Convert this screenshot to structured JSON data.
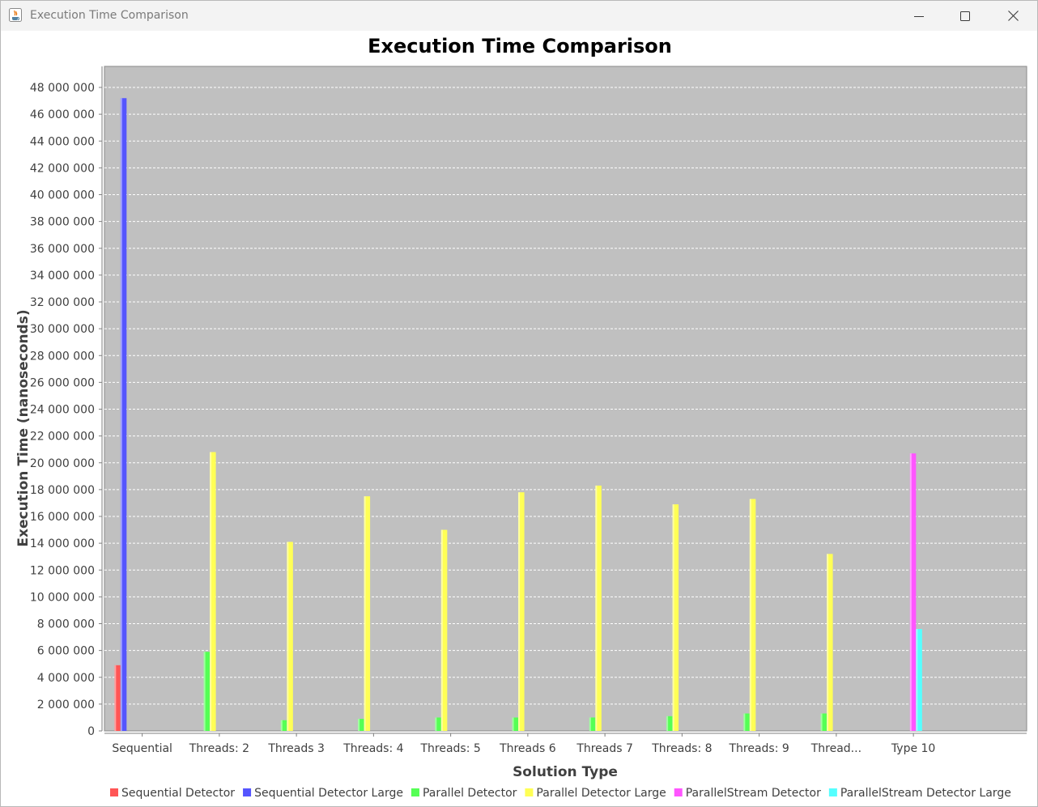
{
  "window": {
    "title": "Execution Time Comparison",
    "buttons": {
      "minimize": "minimize-icon",
      "maximize": "maximize-icon",
      "close": "close-icon"
    }
  },
  "colors": {
    "plot_background": "#c0c0c0",
    "gridline": "#ffffff",
    "series": [
      "#ff5555",
      "#5555ff",
      "#55ff55",
      "#ffff55",
      "#ff55ff",
      "#55ffff"
    ]
  },
  "chart_data": {
    "type": "bar",
    "title": "Execution Time Comparison",
    "xlabel": "Solution Type",
    "ylabel": "Execution Time (nanoseconds)",
    "ylim": [
      0,
      49000000
    ],
    "yticks": [
      0,
      2000000,
      4000000,
      6000000,
      8000000,
      10000000,
      12000000,
      14000000,
      16000000,
      18000000,
      20000000,
      22000000,
      24000000,
      26000000,
      28000000,
      30000000,
      32000000,
      34000000,
      36000000,
      38000000,
      40000000,
      42000000,
      44000000,
      46000000,
      48000000
    ],
    "ytick_labels": [
      "0",
      "2 000 000",
      "4 000 000",
      "6 000 000",
      "8 000 000",
      "10 000 000",
      "12 000 000",
      "14 000 000",
      "16 000 000",
      "18 000 000",
      "20 000 000",
      "22 000 000",
      "24 000 000",
      "26 000 000",
      "28 000 000",
      "30 000 000",
      "32 000 000",
      "34 000 000",
      "36 000 000",
      "38 000 000",
      "40 000 000",
      "42 000 000",
      "44 000 000",
      "46 000 000",
      "48 000 000"
    ],
    "categories": [
      "Sequential",
      "Threads: 2",
      "Threads 3",
      "Threads: 4",
      "Threads: 5",
      "Threads 6",
      "Threads 7",
      "Threads: 8",
      "Threads: 9",
      "Thread...",
      "Type 10"
    ],
    "grid": true,
    "legend": "bottom",
    "series": [
      {
        "name": "Sequential Detector",
        "values": [
          4900000,
          null,
          null,
          null,
          null,
          null,
          null,
          null,
          null,
          null,
          null
        ]
      },
      {
        "name": "Sequential Detector Large",
        "values": [
          47200000,
          null,
          null,
          null,
          null,
          null,
          null,
          null,
          null,
          null,
          null
        ]
      },
      {
        "name": "Parallel Detector",
        "values": [
          null,
          5900000,
          800000,
          900000,
          1000000,
          1000000,
          1000000,
          1100000,
          1300000,
          1300000,
          null
        ]
      },
      {
        "name": "Parallel Detector Large",
        "values": [
          null,
          20800000,
          14100000,
          17500000,
          15000000,
          17800000,
          18300000,
          16900000,
          17300000,
          13200000,
          null
        ]
      },
      {
        "name": "ParallelStream Detector",
        "values": [
          null,
          null,
          null,
          null,
          null,
          null,
          null,
          null,
          null,
          null,
          20700000
        ]
      },
      {
        "name": "ParallelStream Detector Large",
        "values": [
          null,
          null,
          null,
          null,
          null,
          null,
          null,
          null,
          null,
          null,
          7600000
        ]
      }
    ]
  }
}
